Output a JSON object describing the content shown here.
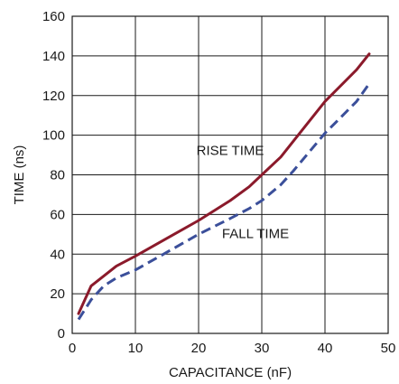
{
  "chart_data": {
    "type": "line",
    "title": "",
    "xlabel": "CAPACITANCE (nF)",
    "ylabel": "TIME (ns)",
    "xlim": [
      0,
      50
    ],
    "ylim": [
      0,
      160
    ],
    "xticks": [
      0,
      10,
      20,
      30,
      40,
      50
    ],
    "yticks": [
      0,
      20,
      40,
      60,
      80,
      100,
      120,
      140,
      160
    ],
    "grid": true,
    "series": [
      {
        "name": "RISE TIME",
        "color": "#8b1a2b",
        "style": "solid",
        "x": [
          1,
          2,
          3,
          5,
          7,
          10,
          15,
          20,
          25,
          28,
          30,
          33,
          35,
          40,
          45,
          47
        ],
        "y": [
          10,
          17,
          24,
          29,
          34,
          39,
          48,
          57,
          67,
          74,
          80,
          89,
          97,
          117,
          133,
          141
        ]
      },
      {
        "name": "FALL TIME",
        "color": "#3b4f9a",
        "style": "dashed",
        "x": [
          1,
          2,
          3,
          5,
          7,
          10,
          15,
          20,
          25,
          28,
          30,
          33,
          35,
          40,
          45,
          47
        ],
        "y": [
          7,
          12,
          17,
          24,
          28,
          32,
          41,
          50,
          58,
          63,
          67,
          75,
          82,
          101,
          117,
          126
        ]
      }
    ],
    "annotations": [
      {
        "text": "RISE TIME",
        "x": 25,
        "y": 90
      },
      {
        "text": "FALL TIME",
        "x": 29,
        "y": 48
      }
    ]
  }
}
